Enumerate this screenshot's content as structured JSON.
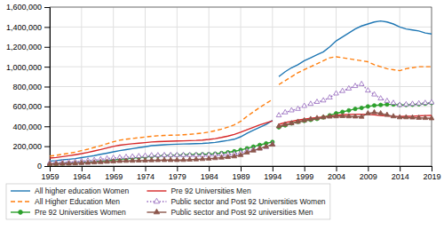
{
  "chart_data": {
    "type": "line",
    "x": [
      1959,
      1960,
      1961,
      1962,
      1963,
      1964,
      1965,
      1966,
      1967,
      1968,
      1969,
      1970,
      1971,
      1972,
      1973,
      1974,
      1975,
      1976,
      1977,
      1978,
      1979,
      1980,
      1981,
      1982,
      1983,
      1984,
      1985,
      1986,
      1987,
      1988,
      1989,
      1990,
      1991,
      1992,
      1993,
      1994,
      null,
      1995,
      1996,
      1997,
      1998,
      1999,
      2000,
      2001,
      2002,
      2003,
      2004,
      2005,
      2006,
      2007,
      2008,
      2009,
      2010,
      2011,
      2012,
      2013,
      2014,
      2015,
      2016,
      2017,
      2018,
      2019
    ],
    "series": [
      {
        "name": "All higher education Women",
        "line_style": "solid",
        "values": [
          50000,
          55000,
          62000,
          68000,
          75000,
          85000,
          95000,
          105000,
          118000,
          130000,
          143000,
          155000,
          165000,
          175000,
          185000,
          195000,
          205000,
          210000,
          215000,
          218000,
          220000,
          222000,
          224000,
          226000,
          228000,
          232000,
          238000,
          248000,
          258000,
          270000,
          295000,
          330000,
          360000,
          390000,
          420000,
          460000,
          null,
          900000,
          950000,
          990000,
          1020000,
          1060000,
          1090000,
          1120000,
          1150000,
          1200000,
          1260000,
          1300000,
          1340000,
          1380000,
          1410000,
          1430000,
          1450000,
          1460000,
          1450000,
          1430000,
          1400000,
          1380000,
          1370000,
          1360000,
          1340000,
          1330000
        ]
      },
      {
        "name": "All Higher Education Men",
        "line_style": "dashed",
        "values": [
          100000,
          108000,
          118000,
          128000,
          140000,
          155000,
          170000,
          188000,
          205000,
          225000,
          245000,
          260000,
          270000,
          278000,
          285000,
          292000,
          300000,
          305000,
          308000,
          310000,
          312000,
          315000,
          320000,
          325000,
          332000,
          342000,
          355000,
          372000,
          392000,
          415000,
          450000,
          500000,
          545000,
          590000,
          630000,
          670000,
          null,
          820000,
          860000,
          900000,
          940000,
          970000,
          1000000,
          1030000,
          1060000,
          1090000,
          1100000,
          1090000,
          1080000,
          1070000,
          1060000,
          1050000,
          1020000,
          1000000,
          980000,
          970000,
          960000,
          980000,
          990000,
          1000000,
          1000000,
          1000000
        ]
      },
      {
        "name": "Pre 92 Universities Women",
        "line_style": "solid",
        "marker": "circle",
        "values": [
          20000,
          22000,
          25000,
          28000,
          32000,
          36000,
          40000,
          45000,
          50000,
          55000,
          62000,
          68000,
          74000,
          80000,
          86000,
          92000,
          98000,
          102000,
          106000,
          108000,
          110000,
          112000,
          114000,
          116000,
          118000,
          120000,
          124000,
          130000,
          138000,
          148000,
          162000,
          178000,
          195000,
          212000,
          228000,
          242000,
          null,
          390000,
          410000,
          430000,
          445000,
          455000,
          465000,
          475000,
          490000,
          510000,
          530000,
          545000,
          560000,
          575000,
          585000,
          600000,
          610000,
          615000,
          620000,
          620000,
          615000,
          615000,
          618000,
          622000,
          628000,
          635000
        ]
      },
      {
        "name": "Pre 92 Universities Men",
        "line_style": "solid",
        "values": [
          80000,
          86000,
          95000,
          104000,
          114000,
          125000,
          138000,
          152000,
          166000,
          182000,
          198000,
          210000,
          218000,
          225000,
          230000,
          236000,
          242000,
          246000,
          248000,
          250000,
          252000,
          254000,
          256000,
          258000,
          262000,
          268000,
          276000,
          288000,
          302000,
          318000,
          340000,
          365000,
          390000,
          415000,
          435000,
          455000,
          null,
          420000,
          438000,
          450000,
          462000,
          472000,
          480000,
          488000,
          495000,
          502000,
          510000,
          516000,
          520000,
          522000,
          522000,
          520000,
          515000,
          510000,
          505000,
          500000,
          498000,
          500000,
          502000,
          505000,
          508000,
          510000
        ]
      },
      {
        "name": "Public sector and Post 92 Universities Women",
        "line_style": "dotted",
        "marker": "triangle-open",
        "values": [
          30000,
          33000,
          37000,
          40000,
          43000,
          49000,
          55000,
          60000,
          68000,
          75000,
          81000,
          87000,
          91000,
          95000,
          99000,
          103000,
          107000,
          108000,
          109000,
          110000,
          110000,
          110000,
          110000,
          110000,
          110000,
          112000,
          114000,
          118000,
          120000,
          122000,
          133000,
          152000,
          165000,
          178000,
          192000,
          218000,
          null,
          510000,
          540000,
          560000,
          575000,
          605000,
          625000,
          645000,
          660000,
          690000,
          730000,
          755000,
          780000,
          805000,
          825000,
          760000,
          720000,
          680000,
          655000,
          635000,
          615000,
          620000,
          625000,
          630000,
          635000,
          640000
        ]
      },
      {
        "name": "Public sector and Post 92 universities Men",
        "line_style": "solid",
        "marker": "triangle",
        "values": [
          20000,
          22000,
          23000,
          24000,
          26000,
          30000,
          32000,
          36000,
          39000,
          43000,
          47000,
          50000,
          52000,
          53000,
          55000,
          56000,
          58000,
          59000,
          60000,
          60000,
          60000,
          61000,
          64000,
          67000,
          70000,
          74000,
          79000,
          84000,
          90000,
          97000,
          110000,
          135000,
          155000,
          175000,
          195000,
          215000,
          null,
          400000,
          418000,
          430000,
          445000,
          460000,
          472000,
          482000,
          490000,
          497000,
          500000,
          502000,
          500000,
          498000,
          496000,
          530000,
          540000,
          530000,
          515000,
          500000,
          490000,
          490000,
          488000,
          485000,
          483000,
          480000
        ]
      }
    ],
    "xlim": [
      1959,
      2019
    ],
    "ylim": [
      0,
      1600000
    ],
    "xticks": [
      1959,
      1964,
      1969,
      1974,
      1979,
      1984,
      1989,
      1994,
      1999,
      2004,
      2009,
      2014,
      2019
    ],
    "yticks": [
      0,
      {
        "value": 200000,
        "label": "200,000"
      },
      {
        "value": 400000,
        "label": "400,000"
      },
      {
        "value": 600000,
        "label": "600,000"
      },
      {
        "value": 800000,
        "label": "800,000"
      },
      {
        "value": 1000000,
        "label": "1,000,000"
      },
      {
        "value": 1200000,
        "label": "1,200,000"
      },
      {
        "value": 1400000,
        "label": "1,400,000"
      },
      {
        "value": 1600000,
        "label": "1,600,000"
      }
    ],
    "grid": true,
    "legend": "bottom"
  }
}
